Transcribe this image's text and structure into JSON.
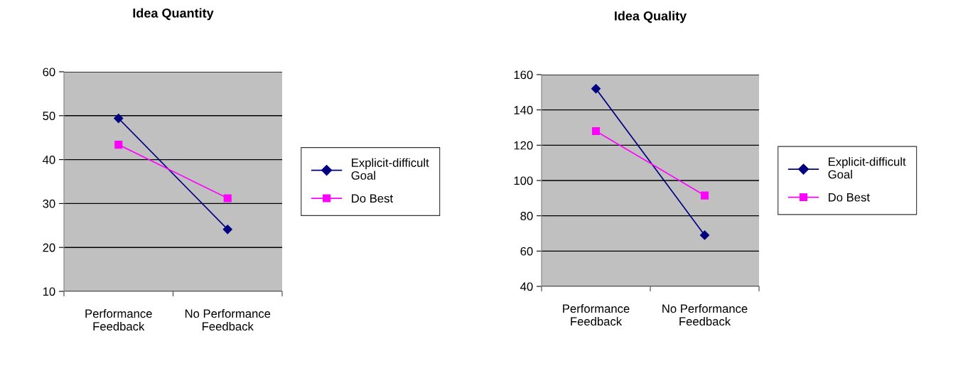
{
  "chart_data": [
    {
      "type": "line",
      "title": "Idea Quantity",
      "categories": [
        "Performance\nFeedback",
        "No Performance\nFeedback"
      ],
      "ylim": [
        10,
        60
      ],
      "yticks": [
        10,
        20,
        30,
        40,
        50,
        60
      ],
      "grid": "y",
      "legend": "right",
      "series": [
        {
          "name": "Explicit-difficult\nGoal",
          "color": "#000080",
          "marker": "diamond",
          "values": [
            49.4,
            24.1
          ]
        },
        {
          "name": "Do Best",
          "color": "#ff00ff",
          "marker": "square",
          "values": [
            43.4,
            31.2
          ]
        }
      ]
    },
    {
      "type": "line",
      "title": "Idea Quality",
      "categories": [
        "Performance\nFeedback",
        "No Performance\nFeedback"
      ],
      "ylim": [
        40,
        160
      ],
      "yticks": [
        40,
        60,
        80,
        100,
        120,
        140,
        160
      ],
      "grid": "y",
      "legend": "right",
      "series": [
        {
          "name": "Explicit-difficult\nGoal",
          "color": "#000080",
          "marker": "diamond",
          "values": [
            152,
            69
          ]
        },
        {
          "name": "Do Best",
          "color": "#ff00ff",
          "marker": "square",
          "values": [
            128,
            91.5
          ]
        }
      ]
    }
  ]
}
